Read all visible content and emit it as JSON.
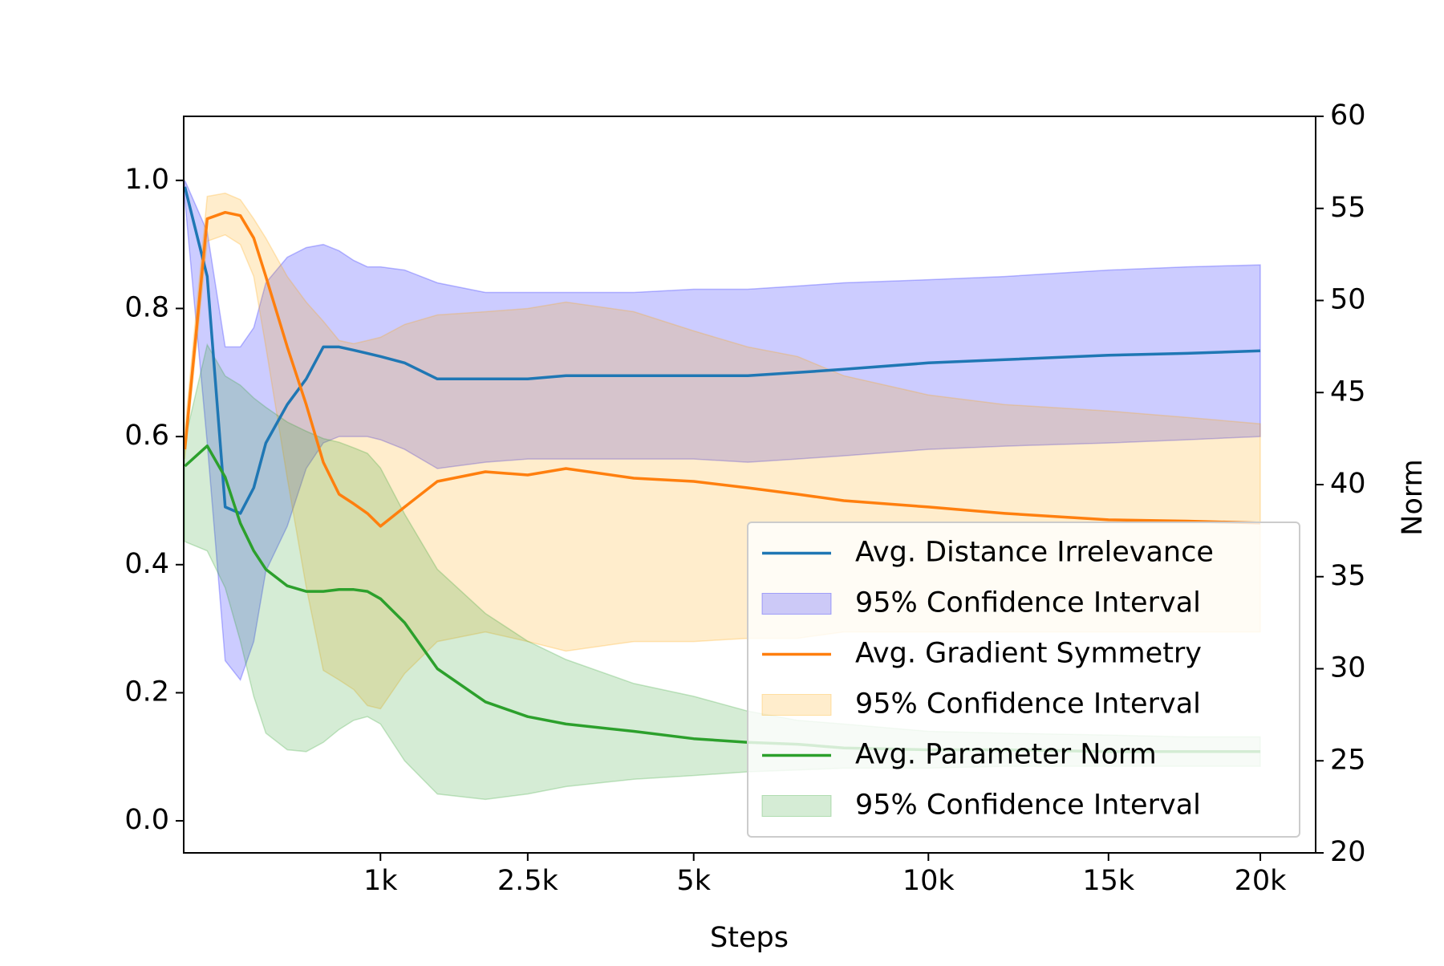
{
  "chart_data": {
    "type": "line",
    "xlabel": "Steps",
    "y2label": "Norm",
    "xscale": "sqrt",
    "xlim": [
      50,
      22000
    ],
    "xticks": [
      {
        "value": 1000,
        "label": "1k"
      },
      {
        "value": 2500,
        "label": "2.5k"
      },
      {
        "value": 5000,
        "label": "5k"
      },
      {
        "value": 10000,
        "label": "10k"
      },
      {
        "value": 15000,
        "label": "15k"
      },
      {
        "value": 20000,
        "label": "20k"
      }
    ],
    "ylim": [
      -0.05,
      1.1
    ],
    "yticks": [
      {
        "value": 0,
        "label": "0.0"
      },
      0.2,
      0.4,
      0.6,
      0.8,
      {
        "value": 1,
        "label": "1.0"
      }
    ],
    "y2lim": [
      20,
      60
    ],
    "y2ticks": [
      20,
      25,
      30,
      35,
      40,
      45,
      50,
      55,
      60
    ],
    "legend": "lower right",
    "x": [
      52,
      100,
      150,
      200,
      250,
      300,
      400,
      500,
      600,
      700,
      800,
      900,
      1000,
      1200,
      1500,
      2000,
      2500,
      3000,
      4000,
      5000,
      6000,
      7000,
      8000,
      10000,
      12000,
      15000,
      17500,
      20000
    ],
    "series": [
      {
        "name": "Avg. Distance Irrelevance",
        "color": "#1f77b4",
        "values": [
          0.99,
          0.85,
          0.49,
          0.48,
          0.52,
          0.59,
          0.65,
          0.69,
          0.74,
          0.74,
          0.735,
          0.73,
          0.725,
          0.715,
          0.69,
          0.69,
          0.69,
          0.695,
          0.695,
          0.695,
          0.695,
          0.7,
          0.705,
          0.715,
          0.72,
          0.727,
          0.73,
          0.734
        ]
      },
      {
        "name": "95% Confidence Interval",
        "color": "#0000ff",
        "upper": [
          1.0,
          0.92,
          0.74,
          0.74,
          0.77,
          0.84,
          0.88,
          0.895,
          0.9,
          0.89,
          0.875,
          0.865,
          0.865,
          0.86,
          0.84,
          0.825,
          0.825,
          0.825,
          0.825,
          0.83,
          0.83,
          0.835,
          0.84,
          0.845,
          0.85,
          0.86,
          0.865,
          0.868
        ],
        "lower": [
          0.97,
          0.59,
          0.25,
          0.22,
          0.28,
          0.39,
          0.46,
          0.55,
          0.59,
          0.6,
          0.6,
          0.6,
          0.595,
          0.58,
          0.55,
          0.56,
          0.565,
          0.565,
          0.565,
          0.565,
          0.56,
          0.565,
          0.57,
          0.58,
          0.585,
          0.59,
          0.595,
          0.6
        ]
      },
      {
        "name": "Avg. Gradient Symmetry",
        "color": "#ff7f0e",
        "values": [
          0.58,
          0.94,
          0.95,
          0.945,
          0.91,
          0.85,
          0.74,
          0.65,
          0.56,
          0.51,
          0.495,
          0.48,
          0.46,
          0.49,
          0.53,
          0.545,
          0.54,
          0.55,
          0.535,
          0.53,
          0.52,
          0.51,
          0.5,
          0.49,
          0.48,
          0.47,
          0.468,
          0.465
        ]
      },
      {
        "name": "95% Confidence Interval",
        "color": "#ffa500",
        "upper": [
          0.61,
          0.975,
          0.98,
          0.97,
          0.94,
          0.91,
          0.85,
          0.81,
          0.78,
          0.75,
          0.745,
          0.75,
          0.755,
          0.775,
          0.79,
          0.795,
          0.8,
          0.81,
          0.795,
          0.765,
          0.74,
          0.725,
          0.695,
          0.665,
          0.65,
          0.64,
          0.63,
          0.62
        ],
        "lower": [
          0.565,
          0.905,
          0.915,
          0.9,
          0.85,
          0.74,
          0.535,
          0.365,
          0.235,
          0.22,
          0.205,
          0.18,
          0.175,
          0.23,
          0.28,
          0.295,
          0.28,
          0.265,
          0.28,
          0.28,
          0.285,
          0.285,
          0.295,
          0.295,
          0.295,
          0.295,
          0.295,
          0.295
        ]
      },
      {
        "name": "Avg. Parameter Norm",
        "color": "#2ca02c",
        "axis": "y2",
        "values": [
          41.0,
          42.1,
          40.4,
          37.9,
          36.4,
          35.4,
          34.5,
          34.2,
          34.2,
          34.3,
          34.3,
          34.2,
          33.8,
          32.5,
          30.0,
          28.2,
          27.4,
          27.0,
          26.6,
          26.2,
          26.0,
          25.9,
          25.7,
          25.6,
          25.6,
          25.5,
          25.5,
          25.5
        ]
      },
      {
        "name": "95% Confidence Interval",
        "color": "#2ca02c",
        "axis": "y2",
        "upper": [
          42.4,
          47.6,
          45.9,
          45.4,
          44.7,
          44.2,
          43.4,
          42.9,
          42.5,
          42.3,
          42.0,
          41.7,
          40.9,
          38.4,
          35.4,
          33.0,
          31.5,
          30.5,
          29.2,
          28.5,
          27.7,
          27.2,
          27.0,
          26.6,
          26.5,
          26.4,
          26.3,
          26.3
        ],
        "lower": [
          36.9,
          36.4,
          34.4,
          31.5,
          28.5,
          26.5,
          25.6,
          25.5,
          26.0,
          26.7,
          27.2,
          27.4,
          27.0,
          25.0,
          23.2,
          22.9,
          23.2,
          23.6,
          24.0,
          24.2,
          24.4,
          24.5,
          24.6,
          24.6,
          24.7,
          24.7,
          24.7,
          24.7
        ]
      }
    ]
  }
}
